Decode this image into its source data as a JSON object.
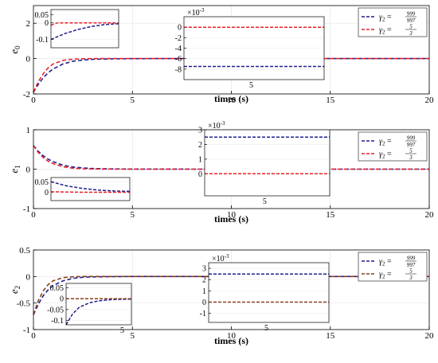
{
  "chart_data": [
    {
      "type": "line",
      "ylabel_base": "e",
      "ylabel_sub": "0",
      "xlabel": "times (s)",
      "xlim": [
        0,
        20
      ],
      "ylim": [
        -2,
        3
      ],
      "xticks": [
        "0",
        "5",
        "10",
        "15",
        "20"
      ],
      "yticks": [
        "-2",
        "0",
        "2"
      ],
      "series": [
        {
          "name_base": "γ",
          "name_sub": "2",
          "name_num": "999",
          "name_den": "997",
          "color": "#1f1f8f",
          "x": [
            0,
            0.25,
            0.5,
            0.75,
            1,
            1.5,
            2,
            2.5,
            3,
            4,
            5,
            6,
            8,
            10,
            12,
            15,
            20
          ],
          "y": [
            -1.9,
            -1.45,
            -1.08,
            -0.8,
            -0.58,
            -0.3,
            -0.15,
            -0.08,
            -0.04,
            -0.012,
            -0.004,
            -0.002,
            0,
            0,
            0,
            0,
            0
          ]
        },
        {
          "name_base": "γ",
          "name_sub": "2",
          "name_num": "5",
          "name_den": "3",
          "color": "#e8202a",
          "x": [
            0,
            0.25,
            0.5,
            0.75,
            1,
            1.5,
            2,
            2.5,
            3,
            4,
            5,
            6,
            8,
            10,
            12,
            15,
            20
          ],
          "y": [
            -1.9,
            -1.3,
            -0.85,
            -0.52,
            -0.3,
            -0.1,
            -0.03,
            -0.01,
            0,
            0,
            0,
            0,
            0,
            0,
            0,
            0,
            0
          ]
        }
      ],
      "insets": [
        {
          "ylim": [
            -0.15,
            0.08
          ],
          "yticks": [
            "0.05",
            "0",
            "-0.1"
          ],
          "xticks": [],
          "exponent": "",
          "series": [
            {
              "x": [
                0,
                0.2,
                0.4,
                0.6,
                0.8,
                1
              ],
              "y": [
                -0.1,
                -0.065,
                -0.04,
                -0.022,
                -0.01,
                -0.005
              ]
            },
            {
              "x": [
                0,
                0.05,
                0.1,
                0.2,
                0.4,
                1
              ],
              "y": [
                -0.015,
                -0.005,
                0,
                0,
                0,
                0
              ]
            }
          ]
        },
        {
          "ylim": [
            -10,
            2
          ],
          "yticks": [
            "0",
            "-2",
            "-4",
            "-6",
            "-8"
          ],
          "xticks": [
            "5"
          ],
          "exponent": "-3",
          "series": [
            {
              "x": [
                0,
                1
              ],
              "y": [
                -7.5,
                -7.5
              ]
            },
            {
              "x": [
                0,
                1
              ],
              "y": [
                0,
                0
              ]
            }
          ]
        }
      ]
    },
    {
      "type": "line",
      "ylabel_base": "e",
      "ylabel_sub": "1",
      "xlabel": "times (s)",
      "xlim": [
        0,
        20
      ],
      "ylim": [
        -1,
        1
      ],
      "xticks": [
        "0",
        "5",
        "10",
        "15",
        "20"
      ],
      "yticks": [
        "-1",
        "0",
        "1"
      ],
      "series": [
        {
          "name_base": "γ",
          "name_sub": "2",
          "name_num": "999",
          "name_den": "997",
          "color": "#1f1f8f",
          "x": [
            0,
            0.25,
            0.5,
            0.75,
            1,
            1.5,
            2,
            2.5,
            3,
            4,
            5,
            6,
            8,
            10,
            12,
            15,
            20
          ],
          "y": [
            0.6,
            0.45,
            0.34,
            0.25,
            0.19,
            0.1,
            0.055,
            0.03,
            0.017,
            0.006,
            0.003,
            0.002,
            0.001,
            0,
            0,
            0,
            0
          ]
        },
        {
          "name_base": "γ",
          "name_sub": "2",
          "name_num": "5",
          "name_den": "3",
          "color": "#e8202a",
          "x": [
            0,
            0.25,
            0.5,
            0.75,
            1,
            1.5,
            2,
            2.5,
            3,
            4,
            5,
            6,
            8,
            10,
            12,
            15,
            20
          ],
          "y": [
            0.6,
            0.42,
            0.29,
            0.2,
            0.14,
            0.06,
            0.025,
            0.01,
            0.004,
            0.001,
            0,
            0,
            0,
            0,
            0,
            0,
            0
          ]
        }
      ],
      "insets": [
        {
          "ylim": [
            -0.04,
            0.07
          ],
          "yticks": [
            "0.05",
            "0"
          ],
          "xticks": [],
          "exponent": "",
          "series": [
            {
              "x": [
                0,
                0.2,
                0.4,
                0.6,
                0.8,
                1
              ],
              "y": [
                0.05,
                0.03,
                0.018,
                0.01,
                0.006,
                0.004
              ]
            },
            {
              "x": [
                0,
                0.2,
                0.4,
                0.6,
                0.8,
                1
              ],
              "y": [
                0.002,
                0.001,
                0,
                0,
                0,
                0
              ]
            }
          ]
        },
        {
          "ylim": [
            -1.5,
            3
          ],
          "yticks": [
            "3",
            "2",
            "1",
            "0"
          ],
          "xticks": [
            "5"
          ],
          "exponent": "-3",
          "series": [
            {
              "x": [
                0,
                1
              ],
              "y": [
                2.5,
                2.5
              ]
            },
            {
              "x": [
                0,
                1
              ],
              "y": [
                0,
                0
              ]
            }
          ]
        }
      ]
    },
    {
      "type": "line",
      "ylabel_base": "e",
      "ylabel_sub": "2",
      "xlabel": "times (s)",
      "xlim": [
        0,
        20
      ],
      "ylim": [
        -1,
        0.5
      ],
      "xticks": [
        "0",
        "5",
        "10",
        "15",
        "20"
      ],
      "yticks": [
        "-1",
        "-0.5",
        "0",
        "0.5"
      ],
      "series": [
        {
          "name_base": "γ",
          "name_sub": "2",
          "name_num": "999",
          "name_den": "997",
          "color": "#1f1f8f",
          "x": [
            0,
            0.25,
            0.5,
            0.75,
            1,
            1.5,
            2,
            2.5,
            3,
            4,
            5,
            6,
            8,
            10,
            12,
            15,
            20
          ],
          "y": [
            -0.72,
            -0.52,
            -0.36,
            -0.25,
            -0.17,
            -0.08,
            -0.035,
            -0.015,
            -0.007,
            -0.002,
            0,
            0,
            0,
            0,
            0,
            0,
            0
          ]
        },
        {
          "name_base": "γ",
          "name_sub": "2",
          "name_num": "5",
          "name_den": "3",
          "color": "#8a3d1a",
          "x": [
            0,
            0.25,
            0.5,
            0.75,
            1,
            1.5,
            2,
            2.5,
            3,
            4,
            5,
            6,
            8,
            10,
            12,
            15,
            20
          ],
          "y": [
            -0.72,
            -0.45,
            -0.27,
            -0.15,
            -0.08,
            -0.02,
            -0.005,
            0,
            0,
            0,
            0,
            0,
            0,
            0,
            0,
            0,
            0
          ]
        }
      ],
      "insets": [
        {
          "ylim": [
            -0.12,
            0.07
          ],
          "yticks": [
            "0.05",
            "0",
            "-0.05",
            "-0.1"
          ],
          "xticks": [
            "5"
          ],
          "exponent": "",
          "series": [
            {
              "x": [
                0,
                0.1,
                0.2,
                0.35,
                0.5,
                0.7,
                1
              ],
              "y": [
                -0.12,
                -0.07,
                -0.04,
                -0.02,
                -0.01,
                -0.004,
                -0.002
              ]
            },
            {
              "x": [
                0,
                1
              ],
              "y": [
                0,
                0
              ]
            }
          ]
        },
        {
          "ylim": [
            -1.8,
            3.5
          ],
          "yticks": [
            "3",
            "2",
            "1",
            "0",
            "-1"
          ],
          "xticks": [
            "5"
          ],
          "exponent": "-3",
          "series": [
            {
              "x": [
                0,
                1
              ],
              "y": [
                2.5,
                2.5
              ]
            },
            {
              "x": [
                0,
                1
              ],
              "y": [
                0,
                0
              ]
            }
          ]
        }
      ]
    }
  ]
}
